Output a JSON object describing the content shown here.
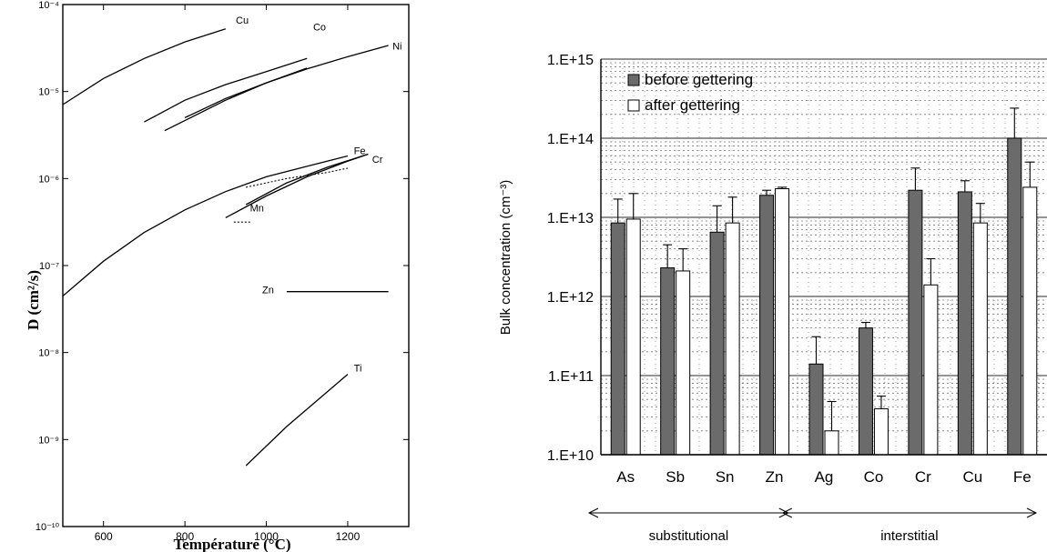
{
  "chart_data": [
    {
      "type": "line",
      "ylabel": "D (cm²/s)",
      "xlabel": "Température (°C)",
      "xlim": [
        500,
        1350
      ],
      "ylim_log10": [
        -10,
        -4
      ],
      "log_y": true,
      "x_ticks": [
        "600",
        "800",
        "1000",
        "1200"
      ],
      "x_tick_values": [
        600,
        800,
        1000,
        1200
      ],
      "y_ticks": [
        "10⁻⁴",
        "10⁻⁵",
        "10⁻⁶",
        "10⁻⁷",
        "10⁻⁸",
        "10⁻⁹",
        "10⁻¹⁰"
      ],
      "y_tick_exponents": [
        -4,
        -5,
        -6,
        -7,
        -8,
        -9,
        -10
      ],
      "grid": false,
      "series": [
        {
          "name": "Cu",
          "style": "solid",
          "x": [
            500,
            600,
            700,
            800,
            900
          ],
          "log10y": [
            -5.15,
            -4.85,
            -4.62,
            -4.43,
            -4.28
          ]
        },
        {
          "name": "Co",
          "style": "solid",
          "x": [
            700,
            800,
            900,
            1000,
            1100
          ],
          "log10y": [
            -5.35,
            -5.1,
            -4.92,
            -4.77,
            -4.62
          ]
        },
        {
          "name": "Ni",
          "style": "solid",
          "x": [
            750,
            900,
            1000,
            1100,
            1200,
            1300
          ],
          "log10y": [
            -5.45,
            -5.1,
            -4.9,
            -4.74,
            -4.6,
            -4.47
          ]
        },
        {
          "name": "Ni",
          "style": "solid",
          "x": [
            800,
            900,
            1000,
            1100
          ],
          "log10y": [
            -5.3,
            -5.08,
            -4.9,
            -4.73
          ]
        },
        {
          "name": "Fe",
          "style": "solid",
          "x": [
            500,
            600,
            700,
            800,
            900,
            1000,
            1100,
            1200
          ],
          "log10y": [
            -7.35,
            -6.95,
            -6.62,
            -6.36,
            -6.15,
            -5.98,
            -5.86,
            -5.74
          ]
        },
        {
          "name": "Cr",
          "style": "solid",
          "x": [
            900,
            1000,
            1100,
            1200,
            1250
          ],
          "log10y": [
            -6.45,
            -6.2,
            -5.98,
            -5.8,
            -5.72
          ]
        },
        {
          "name": "Cr",
          "style": "solid",
          "x": [
            950,
            1050,
            1150,
            1250
          ],
          "log10y": [
            -6.3,
            -6.05,
            -5.87,
            -5.72
          ]
        },
        {
          "name": "Mn",
          "style": "dotted",
          "x": [
            950,
            1050,
            1150,
            1200
          ],
          "log10y": [
            -6.1,
            -6.0,
            -5.93,
            -5.88
          ]
        },
        {
          "name": "Mn",
          "style": "dotted",
          "x": [
            920,
            960
          ],
          "log10y": [
            -6.5,
            -6.5
          ]
        },
        {
          "name": "Zn",
          "style": "solid",
          "x": [
            1050,
            1300
          ],
          "log10y": [
            -7.3,
            -7.3
          ]
        },
        {
          "name": "Ti",
          "style": "solid",
          "x": [
            950,
            1050,
            1150,
            1200
          ],
          "log10y": [
            -9.3,
            -8.85,
            -8.45,
            -8.25
          ]
        }
      ],
      "curve_labels": [
        "Cu",
        "Co",
        "Ni",
        "Fe",
        "Cr",
        "Mn",
        "Zn",
        "Ti"
      ]
    },
    {
      "type": "bar",
      "ylabel": "Bulk concentration (cm⁻³)",
      "log_y": true,
      "ylim_log10": [
        10,
        15
      ],
      "y_ticks": [
        "1.E+15",
        "1.E+14",
        "1.E+13",
        "1.E+12",
        "1.E+11",
        "1.E+10"
      ],
      "y_tick_exponents": [
        15,
        14,
        13,
        12,
        11,
        10
      ],
      "categories": [
        "As",
        "Sb",
        "Sn",
        "Zn",
        "Ag",
        "Co",
        "Cr",
        "Cu",
        "Fe"
      ],
      "series": [
        {
          "name": "before gettering",
          "fill": "#6b6b6b",
          "values": [
            8500000000000.0,
            2300000000000.0,
            6500000000000.0,
            19000000000000.0,
            140000000000.0,
            400000000000.0,
            22000000000000.0,
            21000000000000.0,
            100000000000000.0
          ],
          "errors": [
            17000000000000.0,
            4500000000000.0,
            14000000000000.0,
            22000000000000.0,
            310000000000.0,
            470000000000.0,
            42000000000000.0,
            29000000000000.0,
            240000000000000.0
          ]
        },
        {
          "name": "after gettering",
          "fill": "#ffffff",
          "values": [
            9500000000000.0,
            2100000000000.0,
            8500000000000.0,
            23000000000000.0,
            20000000000.0,
            38000000000.0,
            1400000000000.0,
            8500000000000.0,
            24000000000000.0
          ],
          "errors": [
            20000000000000.0,
            4000000000000.0,
            18000000000000.0,
            24000000000000.0,
            47000000000.0,
            55000000000.0,
            3000000000000.0,
            15000000000000.0,
            50000000000000.0
          ]
        }
      ],
      "groups": [
        {
          "label": "substitutional",
          "categories": [
            "As",
            "Sb",
            "Sn",
            "Zn"
          ]
        },
        {
          "label": "interstitial",
          "categories": [
            "Ag",
            "Co",
            "Cr",
            "Cu",
            "Fe"
          ]
        }
      ],
      "legend_position": "top-left",
      "grid": true
    }
  ]
}
